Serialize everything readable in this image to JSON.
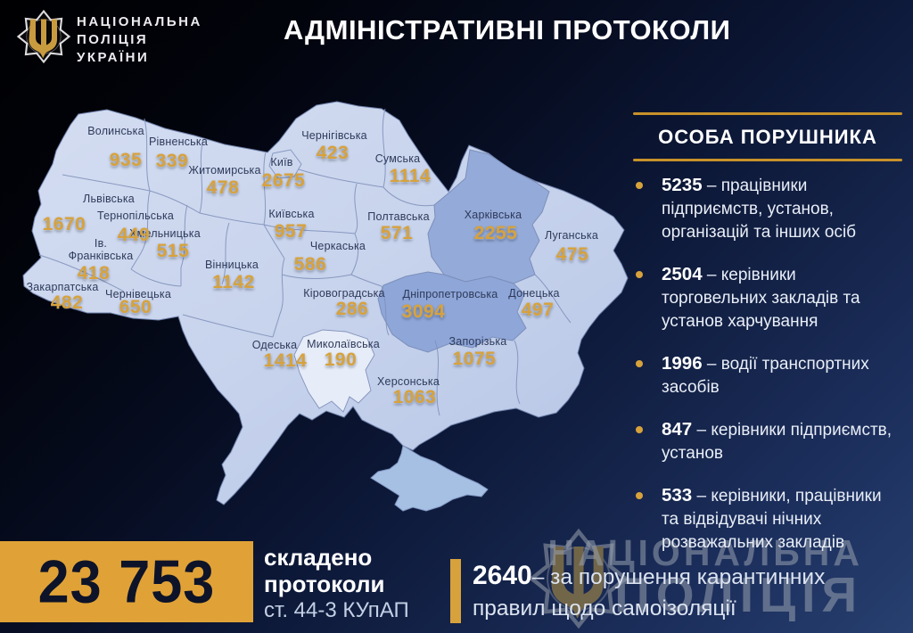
{
  "colors": {
    "gold": "#d7a23c",
    "gold_dark": "#c8922a",
    "box_gold": "#e0a237",
    "map_base": "#ccd6ed",
    "map_dark": "#94aad9",
    "map_light": "#e6ecf8",
    "map_crimea": "#a6c0e4",
    "map_border": "#8191ba",
    "number_ink": "#0d1328"
  },
  "header": {
    "logo_lines": [
      "НАЦІОНАЛЬНА",
      "ПОЛІЦІЯ",
      "УКРАЇНИ"
    ],
    "title": "АДМІНІСТРАТИВНІ ПРОТОКОЛИ"
  },
  "sidebar": {
    "title": "ОСОБА ПОРУШНИКА",
    "items": [
      {
        "number": "5235",
        "text": "– працівники підприємств, установ, організацій та інших осіб"
      },
      {
        "number": "2504",
        "text": "– керівники торговельних закладів та установ харчування"
      },
      {
        "number": "1996",
        "text": "– водії транспортних засобів"
      },
      {
        "number": "847",
        "text": "– керівники підприємств, установ"
      },
      {
        "number": "533",
        "text": "– керівники, працівники та відвідувачі нічних розважальних закладів"
      }
    ]
  },
  "chart_data": {
    "type": "heatmap",
    "title": "АДМІНІСТРАТИВНІ ПРОТОКОЛИ",
    "subtitle": "складено протоколи ст. 44-3 КУпАП",
    "total": 23753,
    "quarantine_self_isolation_violations": 2640,
    "categories": [
      "Волинська",
      "Рівненська",
      "Житомирська",
      "Чернігівська",
      "Київ",
      "Сумська",
      "Київська",
      "Полтавська",
      "Черкаська",
      "Харківська",
      "Луганська",
      "Донецька",
      "Запорізька",
      "Дніпропетровська",
      "Кіровоградська",
      "Миколаївська",
      "Херсонська",
      "Одеська",
      "Вінницька",
      "Хмельницька",
      "Тернопільська",
      "Львівська",
      "Ів. Франківська",
      "Закарпатська",
      "Чернівецька"
    ],
    "values": [
      935,
      339,
      478,
      423,
      2675,
      1114,
      957,
      571,
      586,
      2255,
      475,
      497,
      1075,
      3094,
      286,
      190,
      1063,
      1414,
      1142,
      515,
      449,
      1670,
      418,
      482,
      650
    ]
  },
  "map": {
    "regions": [
      {
        "name": "Волинська",
        "value": "935",
        "nx": 130,
        "ny": 147,
        "vx": 141,
        "vy": 180
      },
      {
        "name": "Рівненська",
        "value": "339",
        "nx": 200,
        "ny": 159,
        "vx": 193,
        "vy": 181
      },
      {
        "name": "Житомирська",
        "value": "478",
        "nx": 252,
        "ny": 191,
        "vx": 250,
        "vy": 211
      },
      {
        "name": "Чернігівська",
        "value": "423",
        "nx": 375,
        "ny": 152,
        "vx": 373,
        "vy": 172
      },
      {
        "name": "Київ",
        "value": "2675",
        "nx": 316,
        "ny": 182,
        "vx": 318,
        "vy": 203
      },
      {
        "name": "Сумська",
        "value": "1114",
        "nx": 446,
        "ny": 178,
        "vx": 460,
        "vy": 198
      },
      {
        "name": "Київська",
        "value": "957",
        "nx": 327,
        "ny": 240,
        "vx": 326,
        "vy": 260
      },
      {
        "name": "Полтавська",
        "value": "571",
        "nx": 447,
        "ny": 243,
        "vx": 445,
        "vy": 262
      },
      {
        "name": "Черкаська",
        "value": "586",
        "nx": 379,
        "ny": 276,
        "vx": 348,
        "vy": 297
      },
      {
        "name": "Харківська",
        "value": "2255",
        "nx": 553,
        "ny": 241,
        "vx": 556,
        "vy": 262
      },
      {
        "name": "Луганська",
        "value": "475",
        "nx": 641,
        "ny": 264,
        "vx": 642,
        "vy": 286
      },
      {
        "name": "Донецька",
        "value": "497",
        "nx": 599,
        "ny": 329,
        "vx": 603,
        "vy": 348
      },
      {
        "name": "Запорізька",
        "value": "1075",
        "nx": 536,
        "ny": 383,
        "vx": 532,
        "vy": 403
      },
      {
        "name": "Дніпропетровська",
        "value": "3094",
        "nx": 505,
        "ny": 330,
        "vx": 475,
        "vy": 350
      },
      {
        "name": "Кіровоградська",
        "value": "286",
        "nx": 386,
        "ny": 329,
        "vx": 395,
        "vy": 347
      },
      {
        "name": "Миколаївська",
        "value": "190",
        "nx": 385,
        "ny": 386,
        "vx": 382,
        "vy": 404
      },
      {
        "name": "Херсонська",
        "value": "1063",
        "nx": 458,
        "ny": 428,
        "vx": 465,
        "vy": 446
      },
      {
        "name": "Одеська",
        "value": "1414",
        "nx": 308,
        "ny": 387,
        "vx": 320,
        "vy": 405
      },
      {
        "name": "Вінницька",
        "value": "1142",
        "nx": 260,
        "ny": 297,
        "vx": 262,
        "vy": 317
      },
      {
        "name": "Хмельницька",
        "value": "515",
        "nx": 185,
        "ny": 262,
        "vx": 194,
        "vy": 282
      },
      {
        "name": "Тернопільська",
        "value": "449",
        "nx": 152,
        "ny": 242,
        "vx": 150,
        "vy": 264
      },
      {
        "name": "Львівська",
        "value": "1670",
        "nx": 122,
        "ny": 223,
        "vx": 72,
        "vy": 252
      },
      {
        "name": "Ів.",
        "name2": "Франківська",
        "value": "418",
        "nx": 113,
        "ny": 280,
        "vx": 105,
        "vy": 307
      },
      {
        "name": "Закарпатська",
        "value": "482",
        "nx": 70,
        "ny": 322,
        "vx": 75,
        "vy": 340
      },
      {
        "name": "Чернівецька",
        "value": "650",
        "nx": 155,
        "ny": 330,
        "vx": 152,
        "vy": 345
      }
    ]
  },
  "footer": {
    "total": "23 753",
    "caption1": "складено",
    "caption2": "протоколи",
    "caption3": "ст. 44-3 КУпАП",
    "extra_number": "2640",
    "extra_text": "– за порушення карантинних правил щодо самоізоляції"
  },
  "watermark": {
    "line1": "НАЦІОНАЛЬНА",
    "line2": "ПОЛІЦІЯ"
  }
}
